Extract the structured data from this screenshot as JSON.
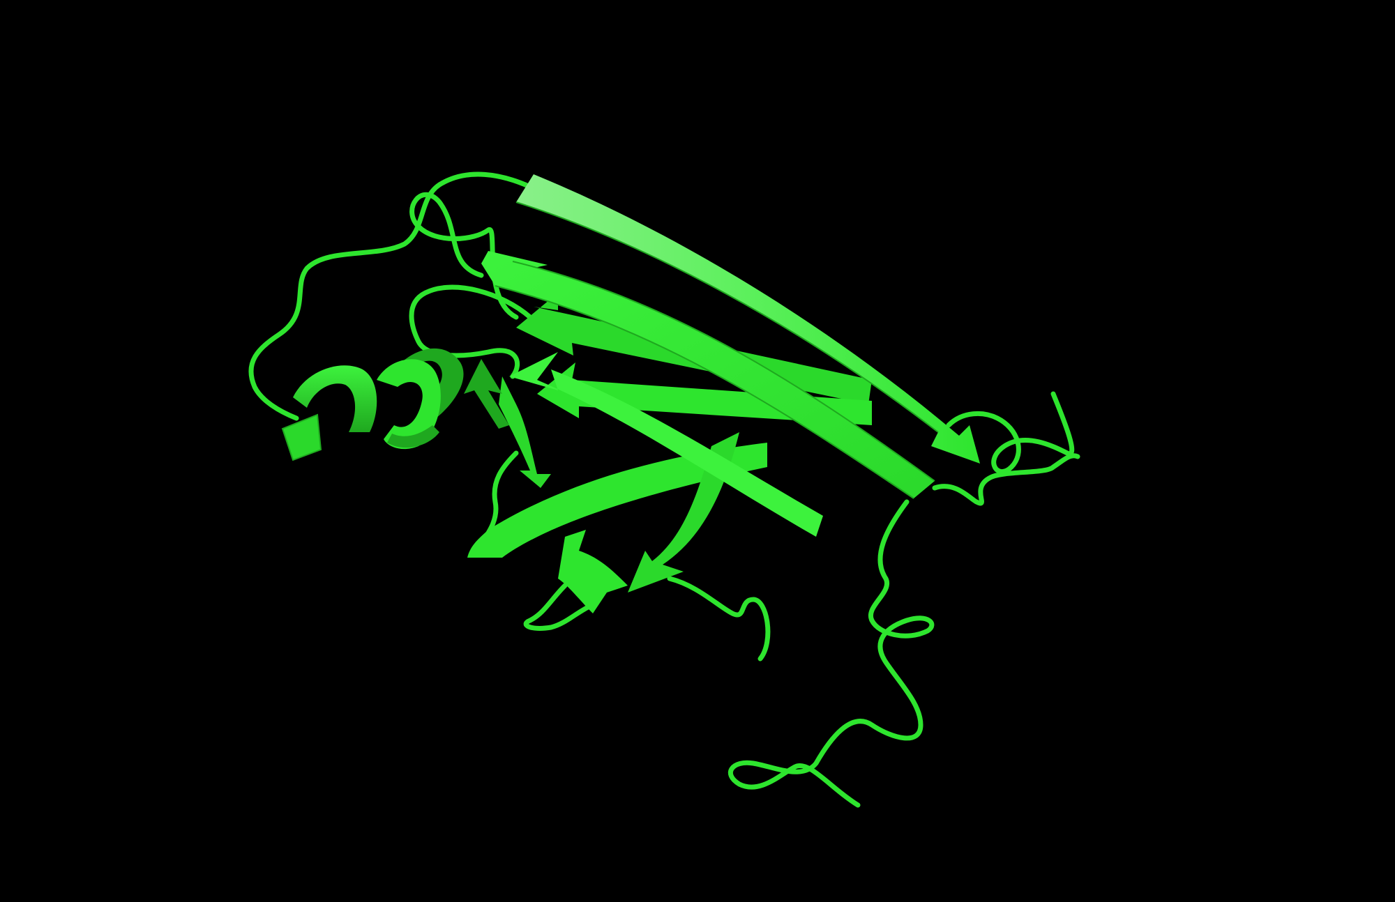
{
  "scene": {
    "subject": "protein-cartoon",
    "representation": "cartoon",
    "background_color": "#000000",
    "colors": {
      "base": "#2ee52e",
      "light": "#8af08a",
      "mid": "#3df23d",
      "dark": "#1fa81f",
      "deep": "#147814"
    },
    "secondary_structure_counts": {
      "helices": 1,
      "beta_strands": 9,
      "loops": 8
    }
  }
}
